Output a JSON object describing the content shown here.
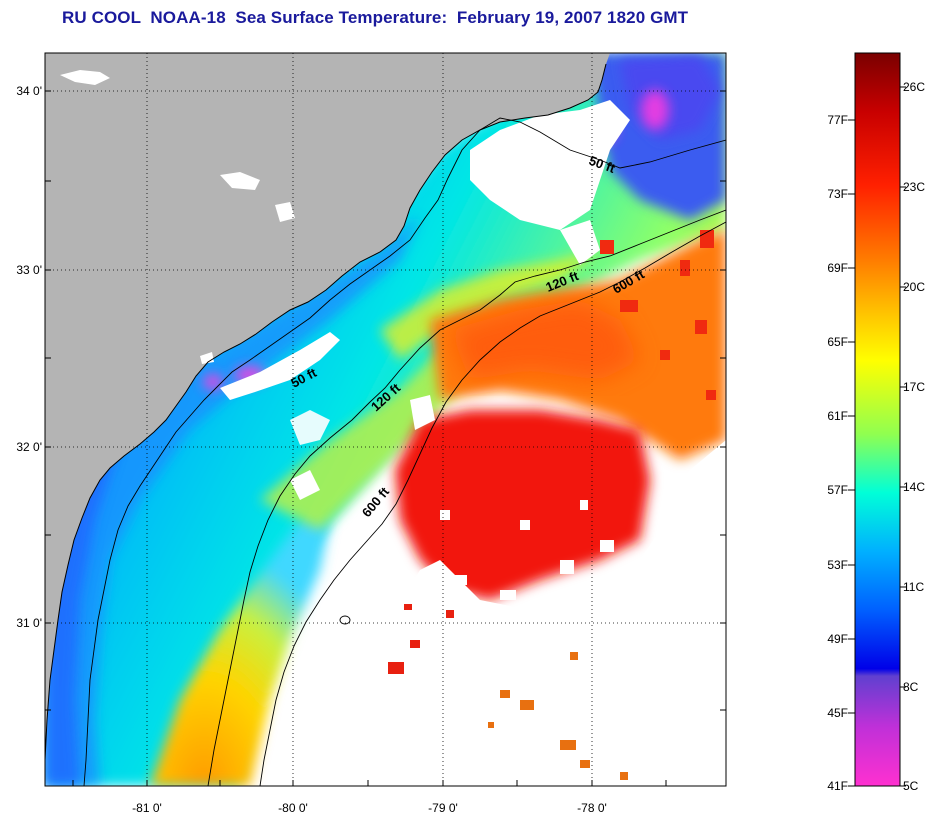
{
  "title": "RU COOL  NOAA-18  Sea Surface Temperature:  February 19, 2007 1820 GMT",
  "map": {
    "lat_labels": [
      "34 0'",
      "33 0'",
      "32 0'",
      "31 0'"
    ],
    "lon_labels": [
      "-81 0'",
      "-80 0'",
      "-79 0'",
      "-78 0'"
    ],
    "lat_ticks": [
      34,
      33.5,
      33,
      32.5,
      32,
      31.5,
      31,
      30.5
    ],
    "lon_ticks": [
      -81.5,
      -81,
      -80.5,
      -80,
      -79.5,
      -79,
      -78.5,
      -78,
      -77.5
    ],
    "gridlines": "dotted at whole degrees",
    "contours": [
      {
        "label": "50 ft"
      },
      {
        "label": "50 ft"
      },
      {
        "label": "120 ft"
      },
      {
        "label": "120 ft"
      },
      {
        "label": "600 ft"
      },
      {
        "label": "600 ft"
      }
    ],
    "colors": {
      "land": "#b4b4b4",
      "cloud": "#ffffff"
    }
  },
  "colorbar": {
    "f_labels": [
      "77F",
      "73F",
      "69F",
      "65F",
      "61F",
      "57F",
      "53F",
      "49F",
      "45F",
      "41F"
    ],
    "c_labels": [
      "26C",
      "23C",
      "20C",
      "17C",
      "14C",
      "11C",
      "8C",
      "5C"
    ]
  }
}
